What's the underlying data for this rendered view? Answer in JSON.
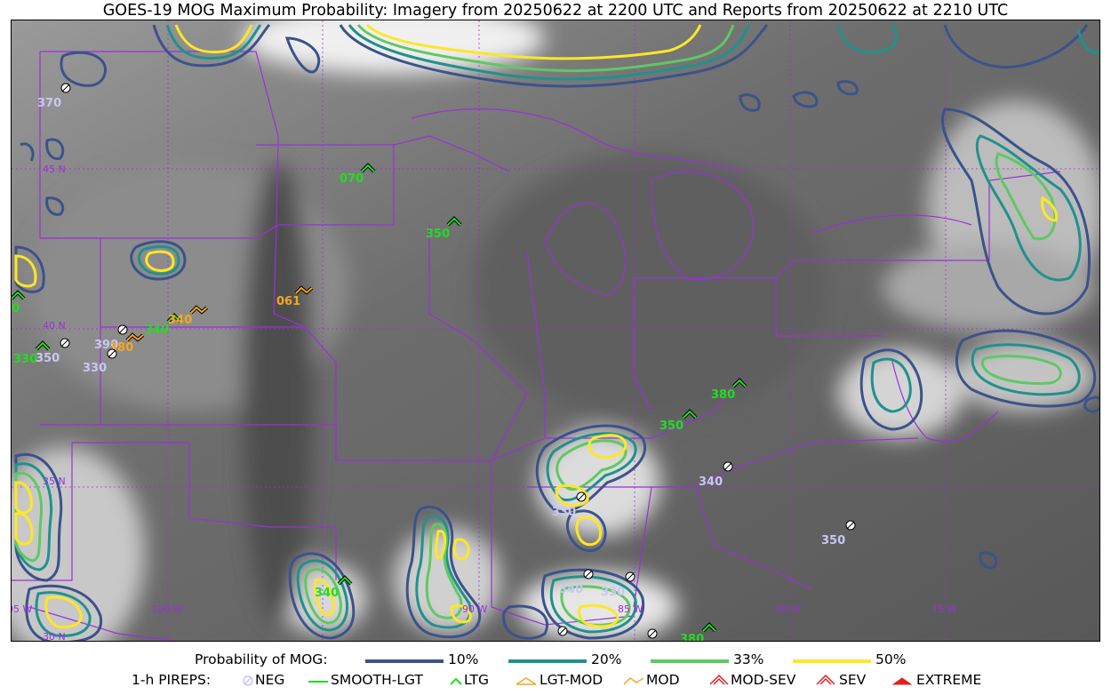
{
  "title": "GOES-19 MOG Maximum Probability: Imagery from 20250622 at 2200 UTC and Reports from 20250622 at 2210 UTC",
  "colors": {
    "p10": "#3b528b",
    "p20": "#21918c",
    "p33": "#5ec962",
    "p50": "#fde725",
    "boundary": "#9b30d9",
    "neg": "#c9c6f5",
    "ltg": "#22dd22",
    "mod": "#f5a623",
    "sev": "#e02020"
  },
  "grid_labels": {
    "lat": [
      "45 N",
      "40 N",
      "35 N",
      "30 N"
    ],
    "lon": [
      "105 W",
      "100 W",
      "95 W",
      "90 W",
      "85 W",
      "80 W",
      "75 W"
    ]
  },
  "reports": [
    {
      "type": "neg",
      "alt": "370"
    },
    {
      "type": "ltg",
      "alt": "070"
    },
    {
      "type": "ltg",
      "alt": "350"
    },
    {
      "type": "mod",
      "alt": "061"
    },
    {
      "type": "ltg",
      "alt": "340"
    },
    {
      "type": "mod",
      "alt": "340"
    },
    {
      "type": "neg",
      "alt": "390"
    },
    {
      "type": "mod",
      "alt": "380"
    },
    {
      "type": "neg",
      "alt": "330"
    },
    {
      "type": "ltg",
      "alt": "330"
    },
    {
      "type": "neg",
      "alt": "350"
    },
    {
      "type": "ltg",
      "alt": "380"
    },
    {
      "type": "ltg",
      "alt": "380"
    },
    {
      "type": "ltg",
      "alt": "350"
    },
    {
      "type": "neg",
      "alt": "340"
    },
    {
      "type": "neg",
      "alt": "330"
    },
    {
      "type": "neg",
      "alt": "350"
    },
    {
      "type": "neg",
      "alt": "340"
    },
    {
      "type": "neg",
      "alt": "330"
    },
    {
      "type": "ltg",
      "alt": "340"
    },
    {
      "type": "neg",
      "alt": "370"
    },
    {
      "type": "ltg",
      "alt": "380"
    }
  ],
  "legend": {
    "prob_label": "Probability of MOG:",
    "prob_items": [
      "10%",
      "20%",
      "33%",
      "50%"
    ],
    "pirep_label": "1-h PIREPS:",
    "pirep_items": [
      "NEG",
      "SMOOTH-LGT",
      "LTG",
      "LGT-MOD",
      "MOD",
      "MOD-SEV",
      "SEV",
      "EXTREME"
    ]
  }
}
